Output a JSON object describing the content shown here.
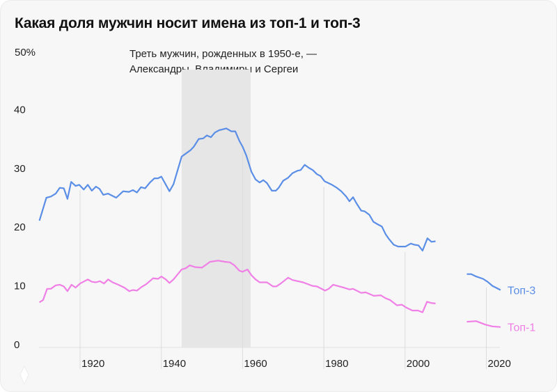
{
  "title": "Какая доля мужчин носит имена из топ-1 и топ-3",
  "annotation": [
    "Треть мужчин, рожденных в 1950-е, —",
    "Александры, Владимиры и Сергеи"
  ],
  "chart_data": {
    "type": "line",
    "title": "Какая доля мужчин носит имена из топ-1 и топ-3",
    "xlabel": "",
    "ylabel": "",
    "xlim": [
      1910,
      2024
    ],
    "ylim": [
      0,
      50
    ],
    "x_ticks": [
      "1920",
      "1940",
      "1960",
      "1980",
      "2000",
      "2020"
    ],
    "y_ticks": [
      "0",
      "10",
      "20",
      "30",
      "40",
      "50%"
    ],
    "highlight_band": [
      1945,
      1962
    ],
    "grid": "vertical",
    "legend": "right, labels at line ends",
    "colors": {
      "top3": "#5b8ee6",
      "top1": "#f07fe6",
      "band": "#e6e6e6"
    },
    "series": [
      {
        "name": "Топ-3",
        "segments": [
          [
            [
              1910,
              21.1
            ],
            [
              1911.7,
              25.0
            ],
            [
              1912.8,
              25.2
            ],
            [
              1914,
              25.7
            ],
            [
              1915,
              26.7
            ],
            [
              1916,
              26.6
            ],
            [
              1916.9,
              24.8
            ],
            [
              1917.8,
              27.7
            ],
            [
              1918.9,
              27.0
            ],
            [
              1919.8,
              27.2
            ],
            [
              1920.9,
              26.4
            ],
            [
              1921.9,
              27.2
            ],
            [
              1922.9,
              26.2
            ],
            [
              1923.9,
              26.9
            ],
            [
              1924.8,
              26.5
            ],
            [
              1925.7,
              25.5
            ],
            [
              1926.9,
              25.7
            ],
            [
              1928.9,
              25.0
            ],
            [
              1930.6,
              26.1
            ],
            [
              1932,
              26.0
            ],
            [
              1933,
              26.3
            ],
            [
              1934,
              25.9
            ],
            [
              1935,
              26.8
            ],
            [
              1936,
              26.6
            ],
            [
              1937.2,
              27.6
            ],
            [
              1938.3,
              28.3
            ],
            [
              1939.2,
              28.3
            ],
            [
              1940,
              28.6
            ],
            [
              1942,
              26.1
            ],
            [
              1943,
              27.3
            ],
            [
              1945,
              32.0
            ],
            [
              1946,
              32.5
            ],
            [
              1947.2,
              33.1
            ],
            [
              1948,
              33.7
            ],
            [
              1949.2,
              35.0
            ],
            [
              1950.3,
              35.1
            ],
            [
              1951.2,
              35.6
            ],
            [
              1952.2,
              35.3
            ],
            [
              1953.2,
              36.1
            ],
            [
              1954.3,
              36.5
            ],
            [
              1956,
              36.8
            ],
            [
              1957.2,
              36.3
            ],
            [
              1958.2,
              36.3
            ],
            [
              1959.2,
              34.7
            ],
            [
              1960,
              33.7
            ],
            [
              1960.9,
              32.2
            ],
            [
              1962.2,
              29.4
            ],
            [
              1963.2,
              28.1
            ],
            [
              1964.2,
              27.6
            ],
            [
              1965.1,
              28.0
            ],
            [
              1966,
              27.5
            ],
            [
              1967.2,
              26.2
            ],
            [
              1968.2,
              26.2
            ],
            [
              1968.9,
              26.7
            ],
            [
              1970,
              27.9
            ],
            [
              1971.2,
              28.4
            ],
            [
              1972.3,
              29.2
            ],
            [
              1973.5,
              29.6
            ],
            [
              1974.3,
              29.7
            ],
            [
              1975.3,
              30.6
            ],
            [
              1976.3,
              30.1
            ],
            [
              1977.3,
              29.7
            ],
            [
              1978.3,
              29.0
            ],
            [
              1979.2,
              28.7
            ],
            [
              1980.2,
              27.8
            ],
            [
              1982,
              27.2
            ],
            [
              1983.2,
              26.7
            ],
            [
              1984.3,
              26.1
            ],
            [
              1985.5,
              25.2
            ],
            [
              1986.3,
              24.4
            ],
            [
              1987.2,
              25.1
            ],
            [
              1988,
              24.1
            ],
            [
              1989.2,
              22.8
            ],
            [
              1990,
              22.7
            ],
            [
              1991.2,
              22.1
            ],
            [
              1992.2,
              20.9
            ],
            [
              1993.2,
              20.5
            ],
            [
              1994.3,
              20.1
            ],
            [
              1995.2,
              18.8
            ],
            [
              1996,
              18.0
            ],
            [
              1997.2,
              17.0
            ],
            [
              1998.3,
              16.7
            ],
            [
              2000.1,
              16.7
            ],
            [
              2001.4,
              17.2
            ],
            [
              2002.3,
              17.0
            ],
            [
              2003.3,
              16.9
            ],
            [
              2004.3,
              16.0
            ],
            [
              2005.5,
              18.1
            ],
            [
              2006.5,
              17.5
            ],
            [
              2007.5,
              17.6
            ]
          ],
          [
            [
              2015.2,
              12.0
            ],
            [
              2016.3,
              12.0
            ],
            [
              2017.5,
              11.6
            ],
            [
              2019.2,
              11.2
            ],
            [
              2020.3,
              10.7
            ],
            [
              2021.5,
              10.0
            ],
            [
              2023.5,
              9.3
            ]
          ]
        ]
      },
      {
        "name": "Топ-1",
        "segments": [
          [
            [
              1910,
              7.2
            ],
            [
              1910.9,
              7.6
            ],
            [
              1911.9,
              9.5
            ],
            [
              1912.8,
              9.5
            ],
            [
              1914,
              10.1
            ],
            [
              1915,
              10.2
            ],
            [
              1916,
              9.9
            ],
            [
              1916.9,
              9.1
            ],
            [
              1917.9,
              10.2
            ],
            [
              1918.9,
              9.7
            ],
            [
              1920,
              10.4
            ],
            [
              1921.9,
              11.1
            ],
            [
              1922.9,
              10.7
            ],
            [
              1923.9,
              10.6
            ],
            [
              1924.9,
              10.8
            ],
            [
              1925.9,
              10.4
            ],
            [
              1926.9,
              11.1
            ],
            [
              1928,
              10.6
            ],
            [
              1929.4,
              10.2
            ],
            [
              1930.9,
              9.7
            ],
            [
              1932.1,
              9.1
            ],
            [
              1933,
              9.3
            ],
            [
              1934,
              9.2
            ],
            [
              1935.1,
              9.8
            ],
            [
              1936.3,
              10.3
            ],
            [
              1938,
              11.3
            ],
            [
              1939.2,
              11.2
            ],
            [
              1940,
              11.6
            ],
            [
              1941.1,
              11.1
            ],
            [
              1942,
              10.5
            ],
            [
              1943,
              11.1
            ],
            [
              1945,
              12.8
            ],
            [
              1946,
              13.0
            ],
            [
              1947,
              13.5
            ],
            [
              1948.3,
              13.2
            ],
            [
              1950,
              13.1
            ],
            [
              1952,
              14.1
            ],
            [
              1954,
              14.3
            ],
            [
              1955.7,
              14.1
            ],
            [
              1956.9,
              14.0
            ],
            [
              1958,
              13.5
            ],
            [
              1959.2,
              12.6
            ],
            [
              1960,
              12.4
            ],
            [
              1961.2,
              12.8
            ],
            [
              1962.2,
              11.8
            ],
            [
              1963.2,
              11.1
            ],
            [
              1964.2,
              10.6
            ],
            [
              1966,
              10.6
            ],
            [
              1967.5,
              9.9
            ],
            [
              1968.3,
              9.9
            ],
            [
              1969.4,
              10.4
            ],
            [
              1971.2,
              11.4
            ],
            [
              1972.3,
              11.0
            ],
            [
              1974.9,
              10.6
            ],
            [
              1977.2,
              10.0
            ],
            [
              1978.3,
              9.9
            ],
            [
              1980.3,
              9.2
            ],
            [
              1981.2,
              9.5
            ],
            [
              1982.3,
              10.2
            ],
            [
              1984.9,
              9.7
            ],
            [
              1986.3,
              9.4
            ],
            [
              1987.2,
              9.5
            ],
            [
              1989.2,
              8.8
            ],
            [
              1990.3,
              8.9
            ],
            [
              1992.3,
              8.3
            ],
            [
              1994,
              8.4
            ],
            [
              1995.2,
              7.9
            ],
            [
              1996.3,
              7.6
            ],
            [
              1998,
              6.7
            ],
            [
              1999.2,
              6.8
            ],
            [
              2000.3,
              6.3
            ],
            [
              2001.8,
              5.8
            ],
            [
              2003.2,
              5.8
            ],
            [
              2004.3,
              5.5
            ],
            [
              2005.4,
              7.3
            ],
            [
              2006.4,
              7.1
            ],
            [
              2007.5,
              7.0
            ]
          ],
          [
            [
              2015.2,
              3.9
            ],
            [
              2017.5,
              4.0
            ],
            [
              2019.8,
              3.4
            ],
            [
              2021.5,
              3.1
            ],
            [
              2023.5,
              3.0
            ]
          ]
        ]
      }
    ]
  }
}
